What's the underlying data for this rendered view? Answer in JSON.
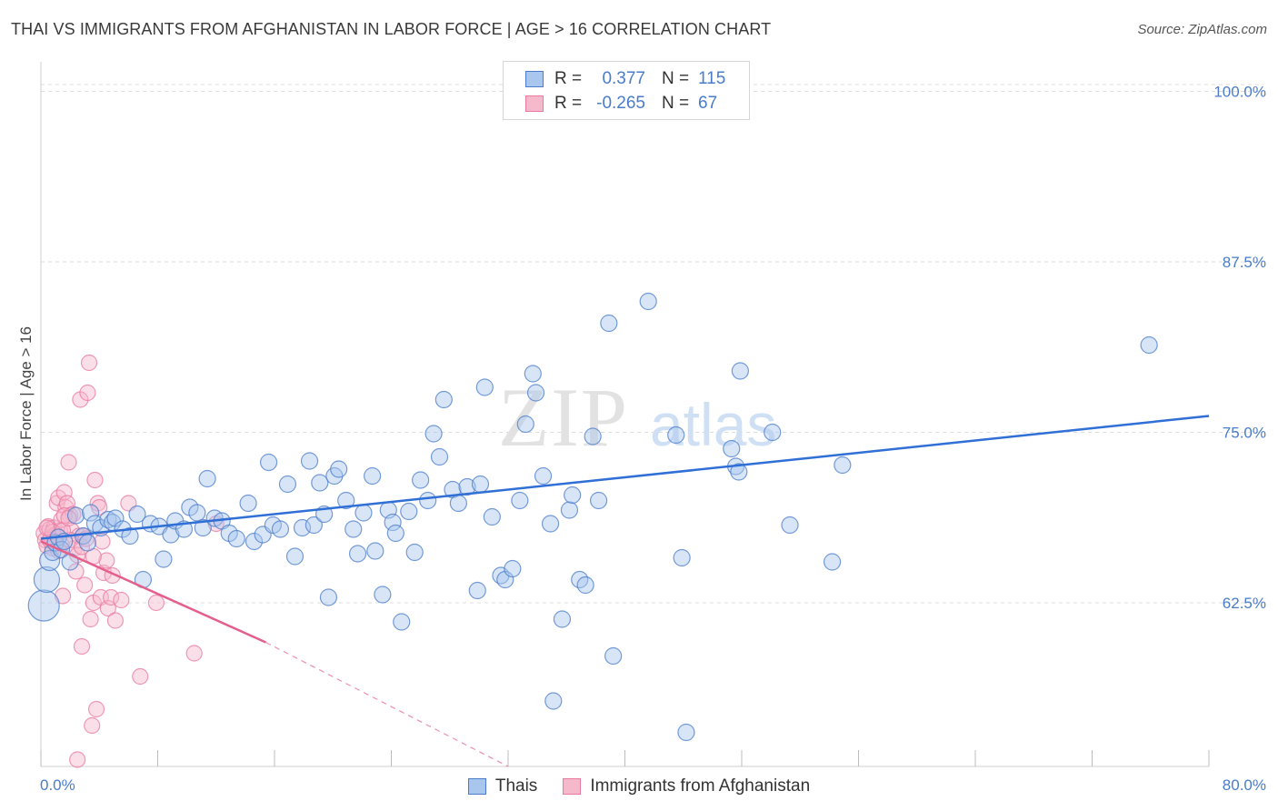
{
  "title": "THAI VS IMMIGRANTS FROM AFGHANISTAN IN LABOR FORCE | AGE > 16 CORRELATION CHART",
  "source": "Source: ZipAtlas.com",
  "watermark": {
    "zip": "ZIP",
    "atlas": "atlas"
  },
  "colors": {
    "blue": "#4a7cc9",
    "blue_fill": "#a9c6ee",
    "blue_line": "#2f6fd6",
    "pink": "#e87aa0",
    "pink_fill": "#f6b9cc",
    "pink_line": "#e4608b"
  },
  "stats": [
    {
      "r_label": "R =",
      "r_value": "0.377",
      "n_label": "N =",
      "n_value": "115"
    },
    {
      "r_label": "R =",
      "r_value": "-0.265",
      "n_label": "N =",
      "n_value": "67"
    }
  ],
  "legend": [
    {
      "label": "Thais"
    },
    {
      "label": "Immigrants from Afghanistan"
    }
  ],
  "chart_data": {
    "type": "scatter",
    "title": "THAI VS IMMIGRANTS FROM AFGHANISTAN IN LABOR FORCE | AGE > 16 CORRELATION CHART",
    "xlabel": "",
    "ylabel": "In Labor Force | Age > 16",
    "xlim": [
      0,
      80
    ],
    "ylim": [
      50.5,
      101.5
    ],
    "x_tick_labels": [
      "0.0%",
      "80.0%"
    ],
    "y_ticks": [
      62.5,
      75.0,
      87.5,
      100.0
    ],
    "y_tick_labels": [
      "62.5%",
      "75.0%",
      "87.5%",
      "100.0%"
    ],
    "legend_position": "top-center",
    "grid": true,
    "series": [
      {
        "name": "Thais",
        "trendline": {
          "x": [
            0,
            80
          ],
          "y": [
            67.2,
            76.2
          ]
        },
        "points": [
          [
            0.2,
            62.3
          ],
          [
            0.4,
            64.2
          ],
          [
            0.6,
            65.6
          ],
          [
            0.8,
            66.2
          ],
          [
            1.0,
            66.9
          ],
          [
            1.2,
            67.3
          ],
          [
            1.4,
            66.4
          ],
          [
            1.6,
            67.0
          ],
          [
            2.0,
            65.5
          ],
          [
            2.4,
            68.9
          ],
          [
            2.9,
            67.4
          ],
          [
            3.2,
            66.9
          ],
          [
            3.4,
            69.1
          ],
          [
            3.7,
            68.3
          ],
          [
            4.1,
            68.0
          ],
          [
            4.6,
            68.6
          ],
          [
            4.9,
            68.4
          ],
          [
            5.1,
            68.7
          ],
          [
            5.6,
            67.9
          ],
          [
            6.1,
            67.4
          ],
          [
            6.6,
            69.0
          ],
          [
            7.0,
            64.2
          ],
          [
            7.5,
            68.3
          ],
          [
            8.1,
            68.1
          ],
          [
            8.4,
            65.7
          ],
          [
            8.9,
            67.5
          ],
          [
            9.2,
            68.5
          ],
          [
            9.8,
            67.9
          ],
          [
            10.2,
            69.5
          ],
          [
            10.7,
            69.1
          ],
          [
            11.1,
            68.0
          ],
          [
            11.4,
            71.6
          ],
          [
            11.9,
            68.7
          ],
          [
            12.4,
            68.5
          ],
          [
            12.9,
            67.6
          ],
          [
            13.4,
            67.2
          ],
          [
            14.2,
            69.8
          ],
          [
            14.6,
            67.0
          ],
          [
            15.2,
            67.5
          ],
          [
            15.6,
            72.8
          ],
          [
            15.9,
            68.2
          ],
          [
            16.4,
            67.9
          ],
          [
            16.9,
            71.2
          ],
          [
            17.4,
            65.9
          ],
          [
            17.9,
            68.0
          ],
          [
            18.4,
            72.9
          ],
          [
            18.7,
            68.2
          ],
          [
            19.1,
            71.3
          ],
          [
            19.4,
            69.0
          ],
          [
            19.7,
            62.9
          ],
          [
            20.1,
            71.8
          ],
          [
            20.4,
            72.3
          ],
          [
            20.9,
            70.0
          ],
          [
            21.4,
            67.9
          ],
          [
            21.7,
            66.1
          ],
          [
            22.1,
            69.1
          ],
          [
            22.7,
            71.8
          ],
          [
            22.9,
            66.3
          ],
          [
            23.4,
            63.1
          ],
          [
            23.8,
            69.3
          ],
          [
            24.1,
            68.4
          ],
          [
            24.3,
            67.6
          ],
          [
            24.7,
            61.1
          ],
          [
            25.2,
            69.2
          ],
          [
            25.6,
            66.2
          ],
          [
            26.0,
            71.5
          ],
          [
            26.5,
            70.0
          ],
          [
            26.9,
            74.9
          ],
          [
            27.3,
            73.2
          ],
          [
            27.6,
            77.4
          ],
          [
            28.2,
            70.8
          ],
          [
            28.6,
            69.8
          ],
          [
            29.2,
            71.0
          ],
          [
            30.1,
            71.2
          ],
          [
            29.9,
            63.4
          ],
          [
            30.4,
            78.3
          ],
          [
            30.9,
            68.8
          ],
          [
            31.5,
            64.5
          ],
          [
            31.8,
            64.2
          ],
          [
            32.3,
            65.0
          ],
          [
            32.8,
            70.0
          ],
          [
            33.2,
            75.6
          ],
          [
            33.7,
            79.3
          ],
          [
            33.9,
            77.9
          ],
          [
            34.4,
            71.8
          ],
          [
            34.9,
            68.3
          ],
          [
            35.1,
            55.3
          ],
          [
            35.7,
            61.3
          ],
          [
            36.2,
            69.3
          ],
          [
            36.4,
            70.4
          ],
          [
            36.9,
            64.2
          ],
          [
            37.3,
            63.8
          ],
          [
            38.2,
            70.0
          ],
          [
            37.8,
            74.7
          ],
          [
            38.9,
            83.0
          ],
          [
            39.2,
            58.6
          ],
          [
            41.6,
            84.6
          ],
          [
            43.5,
            74.8
          ],
          [
            43.9,
            65.8
          ],
          [
            47.3,
            73.8
          ],
          [
            47.6,
            72.5
          ],
          [
            47.8,
            72.1
          ],
          [
            47.9,
            79.5
          ],
          [
            50.1,
            75.0
          ],
          [
            51.3,
            68.2
          ],
          [
            54.2,
            65.5
          ],
          [
            54.9,
            72.6
          ],
          [
            75.9,
            81.4
          ],
          [
            44.2,
            53.0
          ]
        ]
      },
      {
        "name": "Immigrants from Afghanistan",
        "trendline": {
          "x": [
            0,
            15.4
          ],
          "y": [
            67.0,
            59.6
          ]
        },
        "trendline_extension": {
          "x": [
            15.4,
            32.0
          ],
          "y": [
            59.6,
            50.5
          ]
        },
        "points": [
          [
            0.2,
            67.6
          ],
          [
            0.3,
            67.1
          ],
          [
            0.4,
            66.7
          ],
          [
            0.5,
            68.1
          ],
          [
            0.6,
            67.9
          ],
          [
            0.7,
            67.3
          ],
          [
            0.8,
            66.5
          ],
          [
            0.9,
            68.0
          ],
          [
            1.0,
            67.5
          ],
          [
            1.1,
            69.8
          ],
          [
            1.2,
            70.2
          ],
          [
            1.3,
            67.8
          ],
          [
            1.4,
            66.8
          ],
          [
            1.5,
            63.0
          ],
          [
            1.6,
            70.6
          ],
          [
            1.7,
            69.5
          ],
          [
            1.8,
            69.8
          ],
          [
            1.9,
            72.8
          ],
          [
            2.0,
            68.9
          ],
          [
            2.1,
            67.8
          ],
          [
            2.2,
            69.0
          ],
          [
            2.3,
            66.5
          ],
          [
            2.4,
            64.8
          ],
          [
            2.5,
            66.0
          ],
          [
            2.6,
            67.4
          ],
          [
            2.7,
            77.4
          ],
          [
            2.8,
            59.3
          ],
          [
            2.9,
            67.4
          ],
          [
            3.0,
            63.8
          ],
          [
            3.2,
            77.9
          ],
          [
            3.3,
            80.1
          ],
          [
            3.4,
            61.3
          ],
          [
            3.5,
            53.5
          ],
          [
            3.6,
            62.5
          ],
          [
            3.7,
            71.5
          ],
          [
            3.8,
            54.7
          ],
          [
            3.9,
            69.8
          ],
          [
            4.0,
            69.5
          ],
          [
            4.1,
            62.9
          ],
          [
            4.2,
            67.0
          ],
          [
            4.3,
            64.7
          ],
          [
            4.5,
            65.6
          ],
          [
            4.6,
            62.1
          ],
          [
            4.8,
            62.9
          ],
          [
            5.1,
            61.2
          ],
          [
            5.5,
            62.7
          ],
          [
            6.0,
            69.8
          ],
          [
            6.8,
            57.1
          ],
          [
            7.9,
            62.5
          ],
          [
            10.5,
            58.8
          ],
          [
            2.5,
            51.0
          ],
          [
            1.4,
            68.6
          ],
          [
            0.9,
            66.9
          ],
          [
            1.1,
            67.4
          ],
          [
            1.6,
            68.9
          ],
          [
            2.0,
            67.1
          ],
          [
            0.6,
            67.1
          ],
          [
            0.8,
            67.7
          ],
          [
            1.2,
            66.3
          ],
          [
            1.5,
            67.8
          ],
          [
            2.8,
            66.6
          ],
          [
            3.1,
            67.2
          ],
          [
            3.6,
            65.9
          ],
          [
            4.9,
            64.5
          ],
          [
            0.4,
            68.0
          ],
          [
            1.9,
            68.7
          ],
          [
            12.0,
            68.3
          ]
        ]
      }
    ]
  }
}
